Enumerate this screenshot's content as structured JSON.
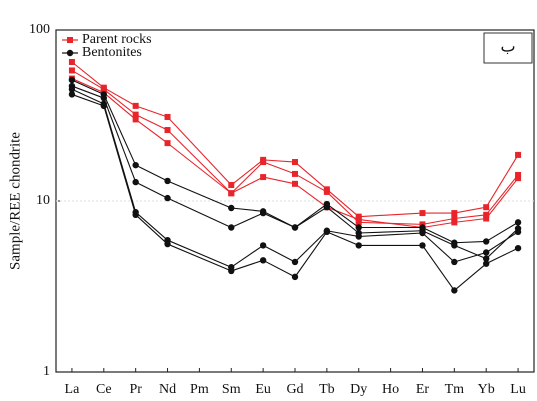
{
  "chart_data": {
    "type": "line",
    "y_label": "Sample/REE chondrite",
    "panel_label": "ب",
    "categories": [
      "La",
      "Ce",
      "Pr",
      "Nd",
      "Pm",
      "Sm",
      "Eu",
      "Gd",
      "Tb",
      "Dy",
      "Ho",
      "Er",
      "Tm",
      "Yb",
      "Lu"
    ],
    "log_scale": true,
    "ylim": [
      1,
      100
    ],
    "yticks": [
      1,
      10,
      100
    ],
    "grid": true,
    "legend": "top-left",
    "series": [
      {
        "name": "Parent rocks",
        "color": "#e8252b",
        "marker": "square",
        "values": [
          65,
          46,
          36,
          31,
          null,
          12.4,
          17.4,
          16.9,
          11.7,
          8.1,
          null,
          8.5,
          8.5,
          9.2,
          18.6
        ]
      },
      {
        "color": "#e8252b",
        "marker": "square",
        "values": [
          58,
          45,
          32,
          26,
          null,
          11.1,
          16.9,
          14.4,
          11.3,
          7.5,
          null,
          7.3,
          7.9,
          8.3,
          14.2
        ]
      },
      {
        "color": "#e8252b",
        "marker": "square",
        "values": [
          52,
          43,
          30,
          21.8,
          null,
          11.1,
          13.8,
          12.6,
          9.2,
          7.8,
          null,
          7.0,
          7.5,
          7.9,
          13.6
        ]
      },
      {
        "name": "Bentonites",
        "color": "#111111",
        "marker": "circle",
        "values": [
          51,
          42,
          16.2,
          13.1,
          null,
          9.1,
          8.7,
          7.0,
          9.6,
          7.0,
          null,
          7.0,
          5.7,
          5.8,
          7.5
        ]
      },
      {
        "color": "#111111",
        "marker": "circle",
        "values": [
          47,
          40,
          12.9,
          10.4,
          null,
          7.0,
          8.5,
          7.0,
          9.2,
          6.5,
          null,
          6.7,
          5.5,
          4.6,
          6.9
        ]
      },
      {
        "color": "#111111",
        "marker": "circle",
        "values": [
          45,
          37,
          8.6,
          5.9,
          null,
          4.1,
          5.5,
          4.4,
          6.7,
          6.2,
          null,
          6.5,
          4.4,
          5.0,
          6.6
        ]
      },
      {
        "color": "#111111",
        "marker": "circle",
        "values": [
          42,
          36,
          8.3,
          5.6,
          null,
          3.9,
          4.5,
          3.6,
          6.6,
          5.5,
          null,
          5.5,
          3.0,
          4.3,
          5.3
        ]
      }
    ]
  }
}
